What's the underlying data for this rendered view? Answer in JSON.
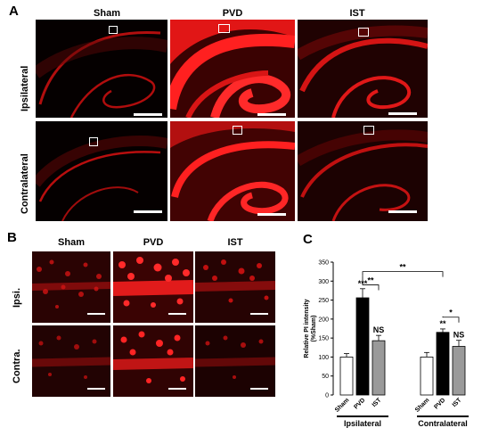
{
  "panel_a": {
    "letter": "A",
    "columns": [
      "Sham",
      "PVD",
      "IST"
    ],
    "rows": [
      "Ipsilateral",
      "Contralateral"
    ]
  },
  "panel_b": {
    "letter": "B",
    "columns": [
      "Sham",
      "PVD",
      "IST"
    ],
    "rows": [
      "Ipsi.",
      "Contra."
    ]
  },
  "panel_c": {
    "letter": "C"
  },
  "colors": {
    "micrograph_red": "#ff1a1a",
    "background": "#050000",
    "bar_black": "#000000",
    "bar_gray": "#9a9a9a",
    "bar_white": "#ffffff"
  },
  "chart_data": {
    "type": "bar",
    "ylabel": "Relative PI intensity\n(%Sham)",
    "ylim": [
      0,
      350
    ],
    "yticks": [
      0,
      50,
      100,
      150,
      200,
      250,
      300,
      350
    ],
    "groups": [
      {
        "name": "Ipsilateral",
        "categories": [
          "Sham",
          "PVD",
          "IST"
        ],
        "values": [
          100,
          256,
          143
        ],
        "errors": [
          9,
          24,
          14
        ],
        "colors": [
          "#ffffff",
          "#000000",
          "#9a9a9a"
        ],
        "labels": [
          "",
          "***",
          "NS"
        ]
      },
      {
        "name": "Contralateral",
        "categories": [
          "Sham",
          "PVD",
          "IST"
        ],
        "values": [
          100,
          165,
          128
        ],
        "errors": [
          12,
          9,
          16
        ],
        "colors": [
          "#ffffff",
          "#000000",
          "#9a9a9a"
        ],
        "labels": [
          "",
          "**",
          "NS"
        ]
      }
    ],
    "comparisons": [
      {
        "label": "**",
        "from": "Ipsilateral PVD",
        "to": "Ipsilateral IST"
      },
      {
        "label": "**",
        "from": "Ipsilateral PVD",
        "to": "Contralateral PVD"
      },
      {
        "label": "*",
        "from": "Contralateral PVD",
        "to": "Contralateral IST"
      }
    ]
  }
}
